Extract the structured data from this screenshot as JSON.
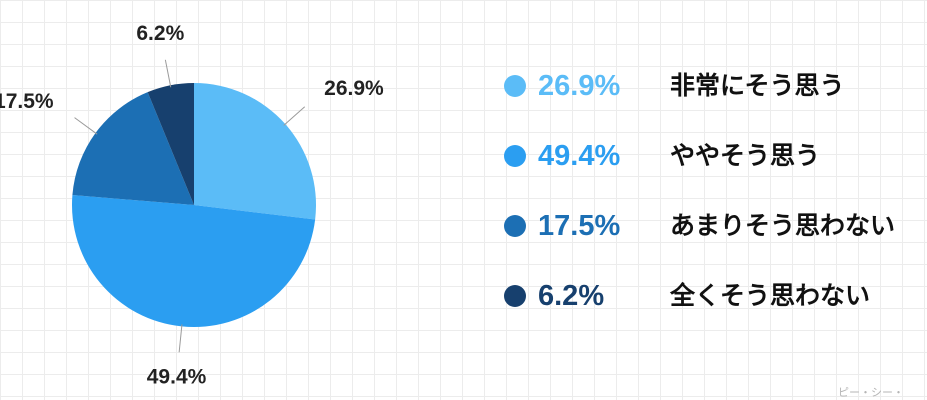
{
  "chart_data": {
    "type": "pie",
    "categories": [
      "非常にそう思う",
      "ややそう思う",
      "あまりそう思わない",
      "全くそう思わない"
    ],
    "values": [
      26.9,
      49.4,
      17.5,
      6.2
    ],
    "labels": [
      "26.9%",
      "49.4%",
      "17.5%",
      "6.2%"
    ],
    "colors": [
      "#5bbcf7",
      "#2b9ef1",
      "#1c6fb4",
      "#17406e"
    ],
    "legend_placement": "right",
    "grid": true
  },
  "legend": [
    {
      "pct": "26.9%",
      "label": "非常にそう思う",
      "color": "#5bbcf7"
    },
    {
      "pct": "49.4%",
      "label": "ややそう思う",
      "color": "#2b9ef1"
    },
    {
      "pct": "17.5%",
      "label": "あまりそう思わない",
      "color": "#1c6fb4"
    },
    {
      "pct": "6.2%",
      "label": "全くそう思わない",
      "color": "#17406e"
    }
  ],
  "watermark": "ピー・シー・"
}
